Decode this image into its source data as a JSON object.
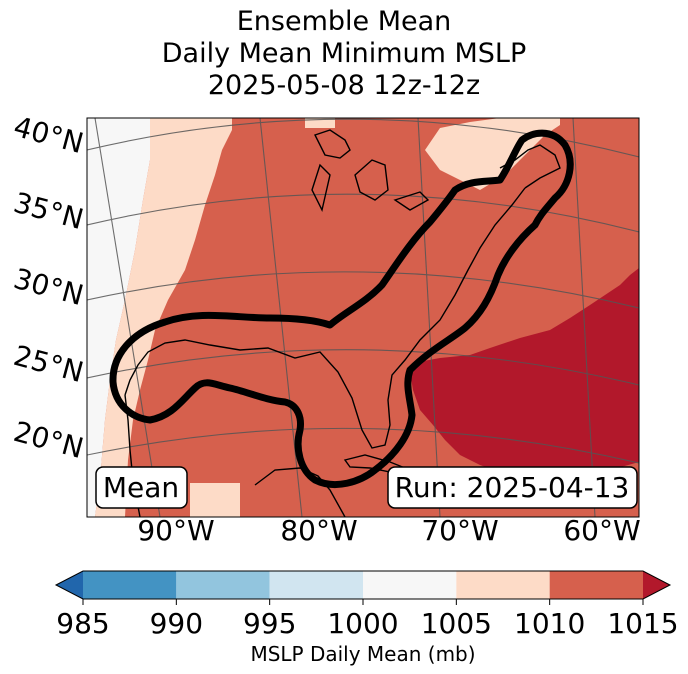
{
  "header": {
    "title_line1": "Ensemble Mean",
    "title_line2": "Daily Mean Minimum MSLP",
    "title_line3": "2025-05-08 12z-12z"
  },
  "annotations": {
    "left_box": "Mean",
    "right_box": "Run: 2025-04-13"
  },
  "chart_data": {
    "type": "heatmap",
    "title": "Ensemble Mean Daily Mean Minimum MSLP 2025-05-08 12z-12z",
    "projection": "Lambert conformal map, eastern United States and western Atlantic",
    "lat_ticks": [
      "40°N",
      "35°N",
      "30°N",
      "25°N",
      "20°N"
    ],
    "lon_ticks": [
      "90°W",
      "80°W",
      "70°W",
      "60°W"
    ],
    "lat_values": [
      40,
      35,
      30,
      25,
      20
    ],
    "lon_values": [
      -90,
      -80,
      -70,
      -60
    ],
    "field": "MSLP daily mean (mb)",
    "dominant_bins": [
      {
        "region": "far west (Texas / western Gulf)",
        "range": "1000-1005"
      },
      {
        "region": "west edge band",
        "range": "1005-1010"
      },
      {
        "region": "Gulf of Mexico, Florida, eastern US, western Atlantic",
        "range": "1010-1015"
      },
      {
        "region": "Central Atlantic (east of 70°W, 20-32°N)",
        "range": ">1015"
      },
      {
        "region": "Nova Scotia / Gulf of Maine",
        "range": "1005-1010"
      }
    ],
    "contour": "Black outline of ensemble storm-track region from Texas through Gulf of Mexico, Florida, up the US East Coast to Nova Scotia",
    "colorbar": {
      "label": "MSLP Daily Mean (mb)",
      "ticks": [
        "985",
        "990",
        "995",
        "1000",
        "1005",
        "1010",
        "1015"
      ],
      "tick_values": [
        985,
        990,
        995,
        1000,
        1005,
        1010,
        1015
      ],
      "extend": "both",
      "colors": [
        "#2166ac",
        "#4393c3",
        "#92c5de",
        "#d1e5f0",
        "#f7f7f7",
        "#fddbc7",
        "#d6604d",
        "#b2182b"
      ]
    }
  }
}
